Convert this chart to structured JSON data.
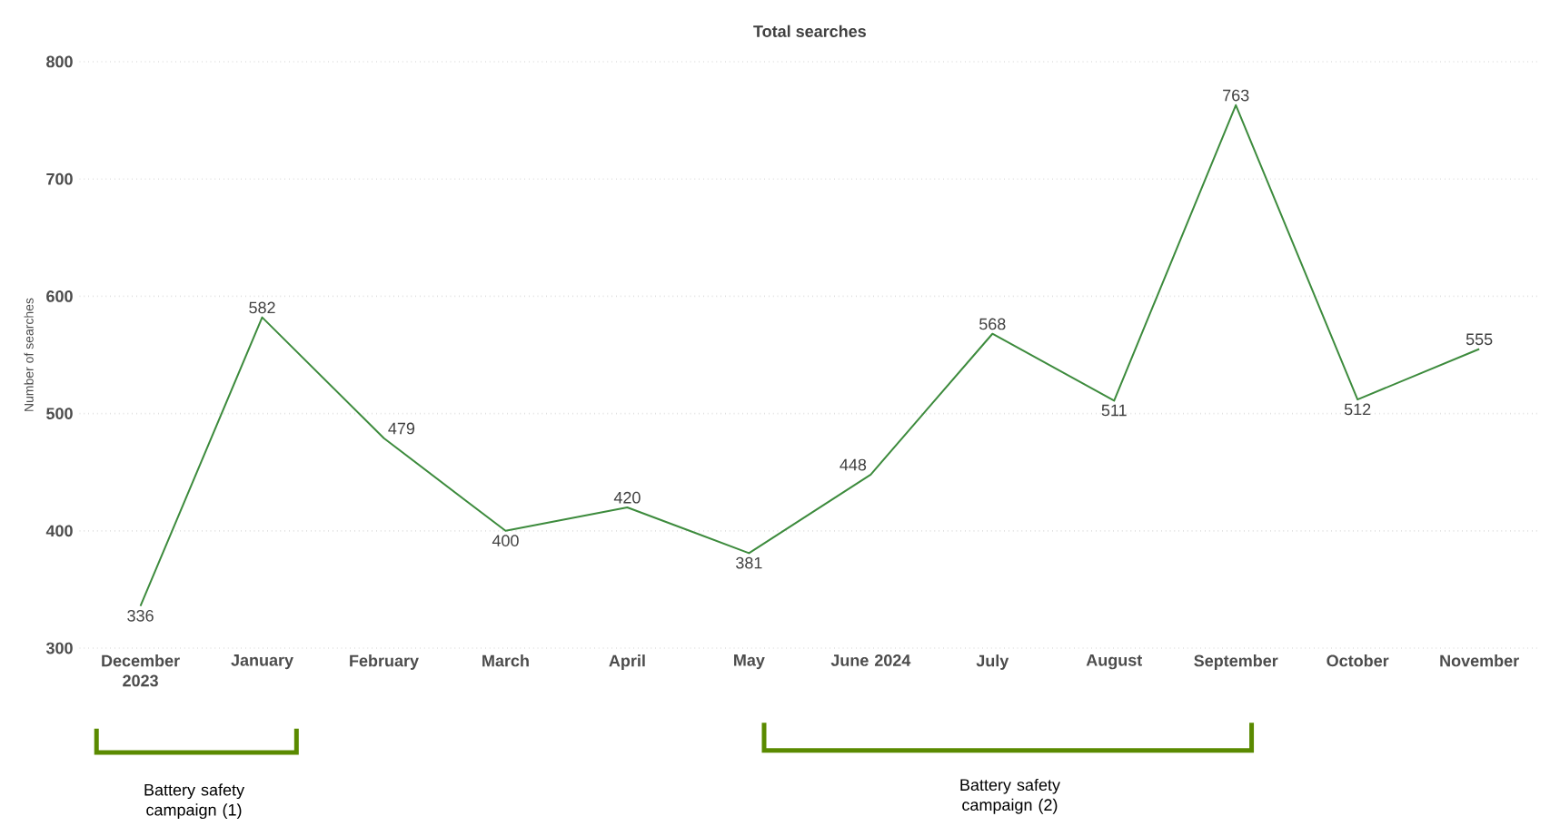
{
  "chart_data": {
    "type": "line",
    "title": "Total searches",
    "ylabel": "Number of searches",
    "categories": [
      "December 2023",
      "January",
      "February",
      "March",
      "April",
      "May",
      "June 2024",
      "July",
      "August",
      "September",
      "October",
      "November"
    ],
    "values": [
      336,
      582,
      479,
      400,
      420,
      381,
      448,
      568,
      511,
      763,
      512,
      555
    ],
    "color": "#3d8b3d",
    "ylim": [
      300,
      800
    ],
    "yticks": [
      300,
      400,
      500,
      600,
      700,
      800
    ],
    "grid": "y",
    "data_labels": true,
    "marker": "none",
    "annotations": [
      "Battery safety campaign (1)",
      "Battery safety campaign (2)"
    ]
  }
}
